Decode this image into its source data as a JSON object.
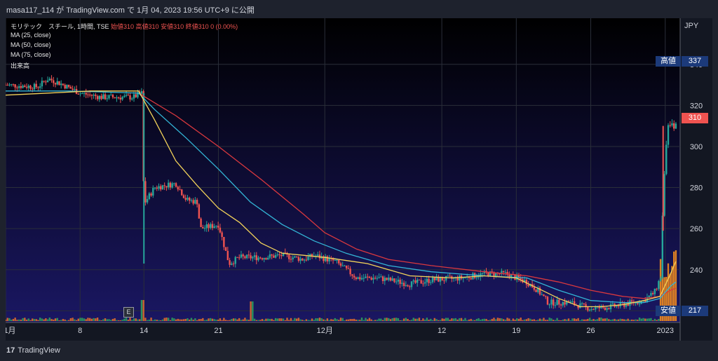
{
  "header": {
    "attribution": "masa117_114 が TradingView.com で 1月 04, 2023 19:56 UTC+9 に公開"
  },
  "legend": {
    "symbol": "モリテック　スチール, 1時間, TSE",
    "ohlc": "始値310 高値310 安値310 終値310 0 (0.00%)",
    "ma25": "MA (25, close)",
    "ma50": "MA (50, close)",
    "ma75": "MA (75, close)",
    "volume": "出来高"
  },
  "axis": {
    "currency": "JPY",
    "y_ticks": [
      220,
      240,
      260,
      280,
      300,
      320,
      340
    ],
    "x_ticks": [
      {
        "label": "1月",
        "day": 0
      },
      {
        "label": "8",
        "day": 7
      },
      {
        "label": "14",
        "day": 13
      },
      {
        "label": "21",
        "day": 20
      },
      {
        "label": "12月",
        "day": 30
      },
      {
        "label": "12",
        "day": 41
      },
      {
        "label": "19",
        "day": 48
      },
      {
        "label": "26",
        "day": 55
      },
      {
        "label": "2023",
        "day": 62
      }
    ]
  },
  "tags": {
    "high_label": "高値",
    "high_value": "337",
    "last_value": "310",
    "low_label": "安値",
    "low_value": "217",
    "earnings_marker": "E"
  },
  "colors": {
    "up": "#26a69a",
    "down": "#ef5350",
    "ma25": "#f3d35a",
    "ma50": "#33b5d6",
    "ma75": "#d9383e",
    "volume_up": "#2e9e5e",
    "volume_down": "#e06b2c",
    "volume_spike": "#f28c1f",
    "high_tag": "#1c3a7a",
    "last_tag": "#ef5350",
    "low_tag": "#1c3a7a"
  },
  "footer": {
    "brand": "TradingView",
    "brand_icon": "tv-logo-icon"
  },
  "chart_data": {
    "type": "candlestick",
    "title": "モリテック　スチール, 1時間, TSE",
    "x_unit": "trading days from 1 Nov 2022",
    "ylim": [
      215,
      345
    ],
    "price_path": [
      [
        0,
        330
      ],
      [
        3,
        329
      ],
      [
        4,
        333
      ],
      [
        5,
        331
      ],
      [
        7,
        326
      ],
      [
        9,
        324
      ],
      [
        12,
        324
      ],
      [
        12.8,
        326
      ],
      [
        13,
        272
      ],
      [
        14,
        280
      ],
      [
        16,
        282
      ],
      [
        17,
        274
      ],
      [
        18,
        273
      ],
      [
        18.3,
        260
      ],
      [
        20,
        262
      ],
      [
        21,
        243
      ],
      [
        22,
        246
      ],
      [
        24,
        246
      ],
      [
        26,
        247
      ],
      [
        28,
        245
      ],
      [
        29,
        247
      ],
      [
        31,
        244
      ],
      [
        33,
        236
      ],
      [
        35,
        236
      ],
      [
        38,
        233
      ],
      [
        40,
        235
      ],
      [
        43,
        236
      ],
      [
        45,
        238
      ],
      [
        47,
        238
      ],
      [
        49,
        234
      ],
      [
        50,
        230
      ],
      [
        51,
        224
      ],
      [
        53,
        224
      ],
      [
        55,
        221
      ],
      [
        57,
        222
      ],
      [
        59,
        224
      ],
      [
        60,
        225
      ],
      [
        61,
        229
      ],
      [
        61.6,
        237
      ],
      [
        61.8,
        280
      ],
      [
        62.1,
        300
      ],
      [
        62.3,
        310
      ],
      [
        63,
        310
      ]
    ],
    "high_value": 337,
    "low_value": 217,
    "last_value": 310,
    "ma25_points": [
      [
        0,
        325
      ],
      [
        4,
        326
      ],
      [
        8,
        327
      ],
      [
        12.5,
        327
      ],
      [
        14,
        313
      ],
      [
        16,
        293
      ],
      [
        18,
        281
      ],
      [
        20,
        270
      ],
      [
        22,
        263
      ],
      [
        24,
        253
      ],
      [
        26,
        248
      ],
      [
        28,
        247
      ],
      [
        30,
        246
      ],
      [
        34,
        243
      ],
      [
        38,
        237
      ],
      [
        42,
        236
      ],
      [
        45,
        237
      ],
      [
        48,
        236
      ],
      [
        50,
        231
      ],
      [
        52,
        226
      ],
      [
        54,
        222
      ],
      [
        56,
        222
      ],
      [
        58,
        223
      ],
      [
        60,
        225
      ],
      [
        61.5,
        227
      ],
      [
        62.5,
        238
      ],
      [
        63,
        244
      ]
    ],
    "ma50_points": [
      [
        0,
        327
      ],
      [
        6,
        327
      ],
      [
        12.5,
        326
      ],
      [
        14,
        318
      ],
      [
        17,
        304
      ],
      [
        20,
        289
      ],
      [
        23,
        273
      ],
      [
        26,
        262
      ],
      [
        29,
        254
      ],
      [
        32,
        248
      ],
      [
        36,
        242
      ],
      [
        40,
        239
      ],
      [
        45,
        237
      ],
      [
        49,
        236
      ],
      [
        52,
        230
      ],
      [
        55,
        225
      ],
      [
        58,
        224
      ],
      [
        60,
        224
      ],
      [
        61.5,
        226
      ],
      [
        62.5,
        232
      ],
      [
        63,
        234
      ]
    ],
    "ma75_points": [
      [
        12.5,
        326
      ],
      [
        16,
        315
      ],
      [
        20,
        300
      ],
      [
        24,
        284
      ],
      [
        28,
        267
      ],
      [
        30,
        258
      ],
      [
        33,
        250
      ],
      [
        36,
        245
      ],
      [
        40,
        242
      ],
      [
        45,
        239
      ],
      [
        49,
        237
      ],
      [
        52,
        234
      ],
      [
        55,
        230
      ],
      [
        58,
        227
      ],
      [
        60,
        226
      ],
      [
        61.5,
        227
      ],
      [
        62.5,
        230
      ],
      [
        63,
        231
      ]
    ]
  }
}
